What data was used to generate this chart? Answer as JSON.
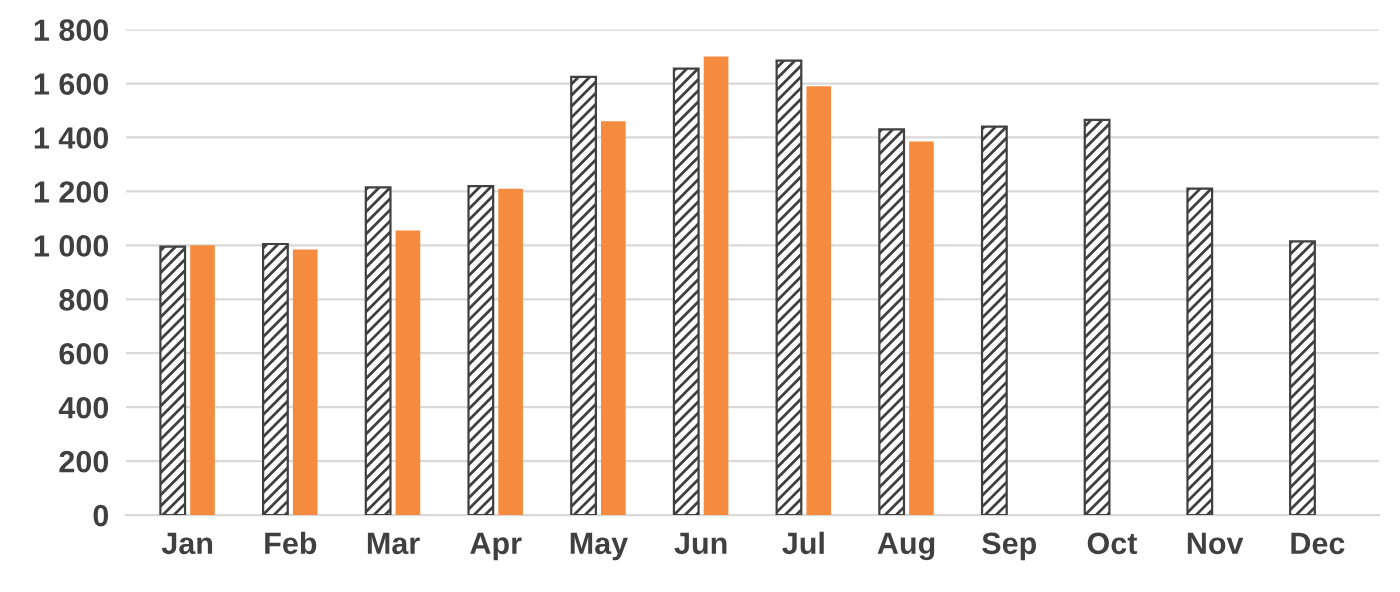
{
  "chart_data": {
    "type": "bar",
    "categories": [
      "Jan",
      "Feb",
      "Mar",
      "Apr",
      "May",
      "Jun",
      "Jul",
      "Aug",
      "Sep",
      "Oct",
      "Nov",
      "Dec"
    ],
    "series": [
      {
        "color": "#404040",
        "values": [
          995,
          1005,
          1215,
          1220,
          1625,
          1655,
          1685,
          1430,
          1440,
          1465,
          1210,
          1015
        ]
      },
      {
        "color": "#f58b3f",
        "values": [
          1000,
          985,
          1055,
          1210,
          1460,
          1700,
          1590,
          1385,
          null,
          null,
          null,
          null
        ]
      }
    ],
    "ylim": [
      0,
      1800
    ],
    "yticks": [
      0,
      200,
      400,
      600,
      800,
      {
        "value": 1000,
        "label": "1 000"
      },
      {
        "value": 1200,
        "label": "1 200"
      },
      {
        "value": 1400,
        "label": "1 400"
      },
      {
        "value": 1600,
        "label": "1 600"
      },
      {
        "value": 1800,
        "label": "1 800"
      }
    ],
    "grid": "y"
  }
}
